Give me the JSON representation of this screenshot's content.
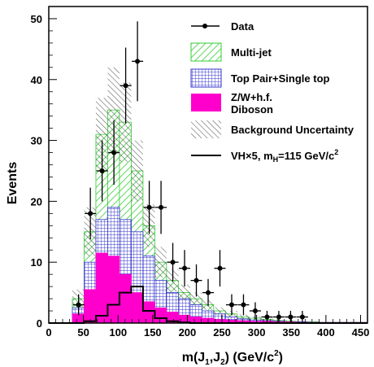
{
  "chart_data": {
    "type": "bar",
    "title": "",
    "xlabel": "m(J1,J2) (GeV/c2)",
    "ylabel": "Events",
    "xlim": [
      0,
      460
    ],
    "ylim": [
      0,
      52
    ],
    "x_ticks": [
      0,
      50,
      100,
      150,
      200,
      250,
      300,
      350,
      400,
      450
    ],
    "y_ticks": [
      0,
      10,
      20,
      30,
      40,
      50
    ],
    "bin_edges": [
      0,
      17,
      34,
      51,
      68,
      85,
      102,
      119,
      136,
      153,
      170,
      187,
      204,
      221,
      238,
      255,
      272,
      289,
      306,
      323,
      340,
      357,
      374,
      391,
      408,
      425,
      442,
      460
    ],
    "series": [
      {
        "name": "Multi-jet",
        "kind": "stack-total",
        "values": [
          0,
          0,
          4,
          15,
          31,
          35,
          33,
          25,
          16,
          10,
          7,
          5,
          4,
          3,
          2,
          1.5,
          1.0,
          0.8,
          0.6,
          0.4,
          0.3,
          0.2,
          0.2,
          0.1,
          0.1,
          0.1,
          0.1
        ]
      },
      {
        "name": "Top Pair+Single top",
        "kind": "stack-total",
        "values": [
          0,
          0,
          2.5,
          10,
          17,
          19,
          17,
          15,
          11,
          7,
          5,
          4,
          3,
          2,
          1.5,
          1.0,
          0.7,
          0.5,
          0.4,
          0.3,
          0.2,
          0.2,
          0.1,
          0.1,
          0.1,
          0.1,
          0.1
        ]
      },
      {
        "name": "Z/W+h.f. Diboson",
        "kind": "stack-total",
        "values": [
          0,
          0,
          1.5,
          5.5,
          11.5,
          11,
          8,
          5,
          3.5,
          2.5,
          1.8,
          1.3,
          1.0,
          0.8,
          0.6,
          0.5,
          0.4,
          0.3,
          0.3,
          0.2,
          0.2,
          0.1,
          0.1,
          0.1,
          0.1,
          0.1,
          0.1
        ]
      },
      {
        "name": "Background Uncertainty",
        "kind": "band",
        "values": [
          0,
          0,
          1.5,
          4,
          6,
          7,
          6.5,
          5,
          3.5,
          2.5,
          1.8,
          1.3,
          1,
          0.8,
          0.6,
          0.5,
          0.4,
          0.3,
          0.3,
          0.2,
          0.2,
          0.1,
          0.1,
          0.1,
          0.1,
          0.1,
          0.1
        ]
      },
      {
        "name": "VH×5, m_H=115 GeV/c2",
        "kind": "signal",
        "values": [
          0,
          0,
          0,
          0.3,
          1.2,
          3.0,
          5.0,
          6.0,
          2.0,
          0.8,
          0.3,
          0.1,
          0,
          0,
          0,
          0,
          0,
          0,
          0,
          0,
          0,
          0,
          0,
          0,
          0,
          0,
          0
        ]
      },
      {
        "name": "Data",
        "kind": "points",
        "x": [
          43,
          60,
          77,
          94,
          111,
          128,
          145,
          162,
          179,
          196,
          213,
          230,
          247,
          264,
          281,
          298,
          315,
          332,
          349,
          366
        ],
        "y": [
          3,
          18,
          25,
          28,
          39,
          43,
          19,
          19,
          10,
          9,
          7,
          5,
          9,
          3,
          3,
          2,
          1,
          1,
          1,
          1
        ]
      }
    ]
  },
  "legend": {
    "data": "Data",
    "multijet": "Multi-jet",
    "top": "Top Pair+Single top",
    "zw_line1": "Z/W+h.f.",
    "zw_line2": "Diboson",
    "unc": "Background Uncertainty",
    "signal_main": "VH×5, m",
    "signal_sub": "H",
    "signal_rest": "=115 GeV/c",
    "signal_sup": "2"
  },
  "axes": {
    "ylabel": "Events",
    "x_main": "m(J",
    "x_sub1": "1",
    "x_mid": ",J",
    "x_sub2": "2",
    "x_rest": ") (GeV/c",
    "x_sup": "2",
    "x_close": ")"
  },
  "colors": {
    "multijet": "#33cc33",
    "top": "#3333cc",
    "zw": "#ff00cc",
    "signal": "#000000",
    "data": "#000000",
    "unc": "#555555"
  }
}
